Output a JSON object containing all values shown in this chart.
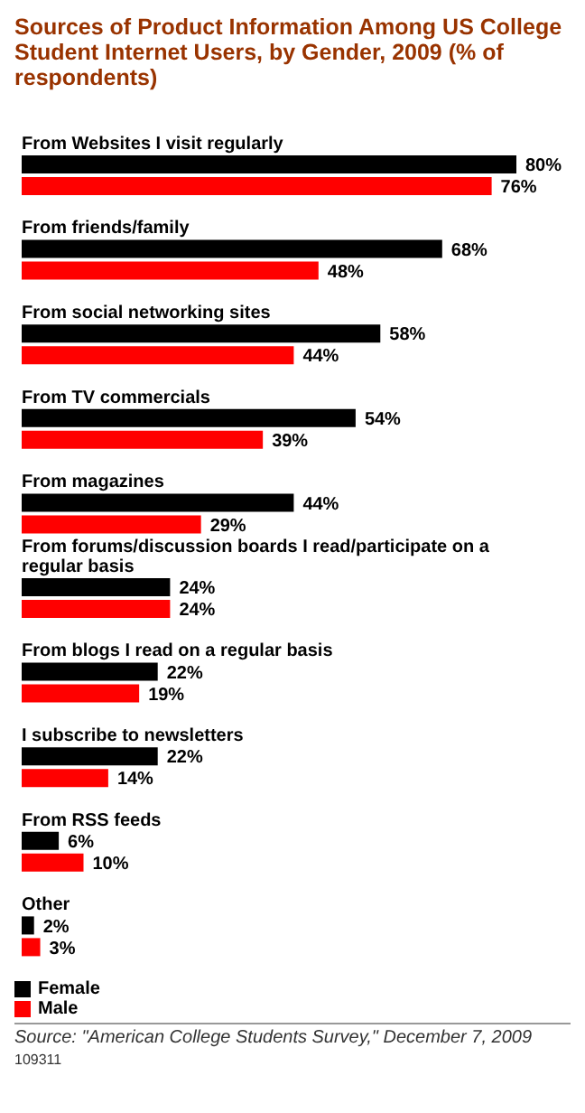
{
  "chart_data": {
    "type": "bar",
    "orientation": "horizontal",
    "title": "Sources of Product Information Among US College Student Internet Users, by Gender, 2009 (% of respondents)",
    "categories": [
      "From Websites I visit regularly",
      "From friends/family",
      "From social networking sites",
      "From TV commercials",
      "From magazines",
      "From forums/discussion boards I read/participate on a regular basis",
      "From blogs I read on a regular basis",
      "I subscribe to newsletters",
      "From RSS feeds",
      "Other"
    ],
    "series": [
      {
        "name": "Female",
        "color": "#000000",
        "values": [
          80,
          68,
          58,
          54,
          44,
          24,
          22,
          22,
          6,
          2
        ],
        "value_labels": [
          "80%",
          "68%",
          "58%",
          "54%",
          "44%",
          "24%",
          "22%",
          "22%",
          "6%",
          "2%"
        ]
      },
      {
        "name": "Male",
        "color": "#ff0000",
        "values": [
          76,
          48,
          44,
          39,
          29,
          24,
          19,
          14,
          10,
          3
        ],
        "value_labels": [
          "76%",
          "48%",
          "44%",
          "39%",
          "29%",
          "24%",
          "19%",
          "14%",
          "10%",
          "3%"
        ]
      }
    ],
    "legend": "bottom",
    "annotations": [
      "Source: \"American College Students Survey,\" December 7, 2009",
      "109311"
    ]
  }
}
